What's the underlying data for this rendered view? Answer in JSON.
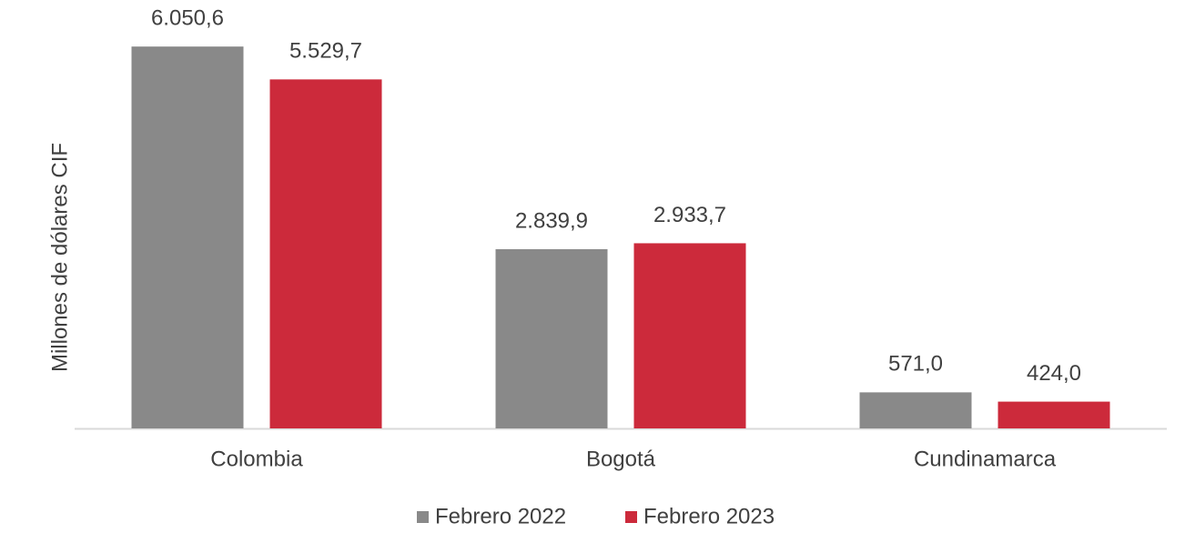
{
  "chart_data": {
    "type": "bar",
    "y_label": "Millones de dólares CIF",
    "categories": [
      "Colombia",
      "Bogotá",
      "Cundinamarca"
    ],
    "series": [
      {
        "name": "Febrero 2022",
        "color": "#898989",
        "values": [
          6050.6,
          2839.9,
          571.0
        ],
        "value_labels": [
          "6.050,6",
          "2.839,9",
          "571,0"
        ]
      },
      {
        "name": "Febrero 2023",
        "color": "#cc2a3b",
        "values": [
          5529.7,
          2933.7,
          424.0
        ],
        "value_labels": [
          "5.529,7",
          "2.933,7",
          "424,0"
        ]
      }
    ],
    "ylim": [
      0,
      6500
    ],
    "legend": "bottom"
  }
}
